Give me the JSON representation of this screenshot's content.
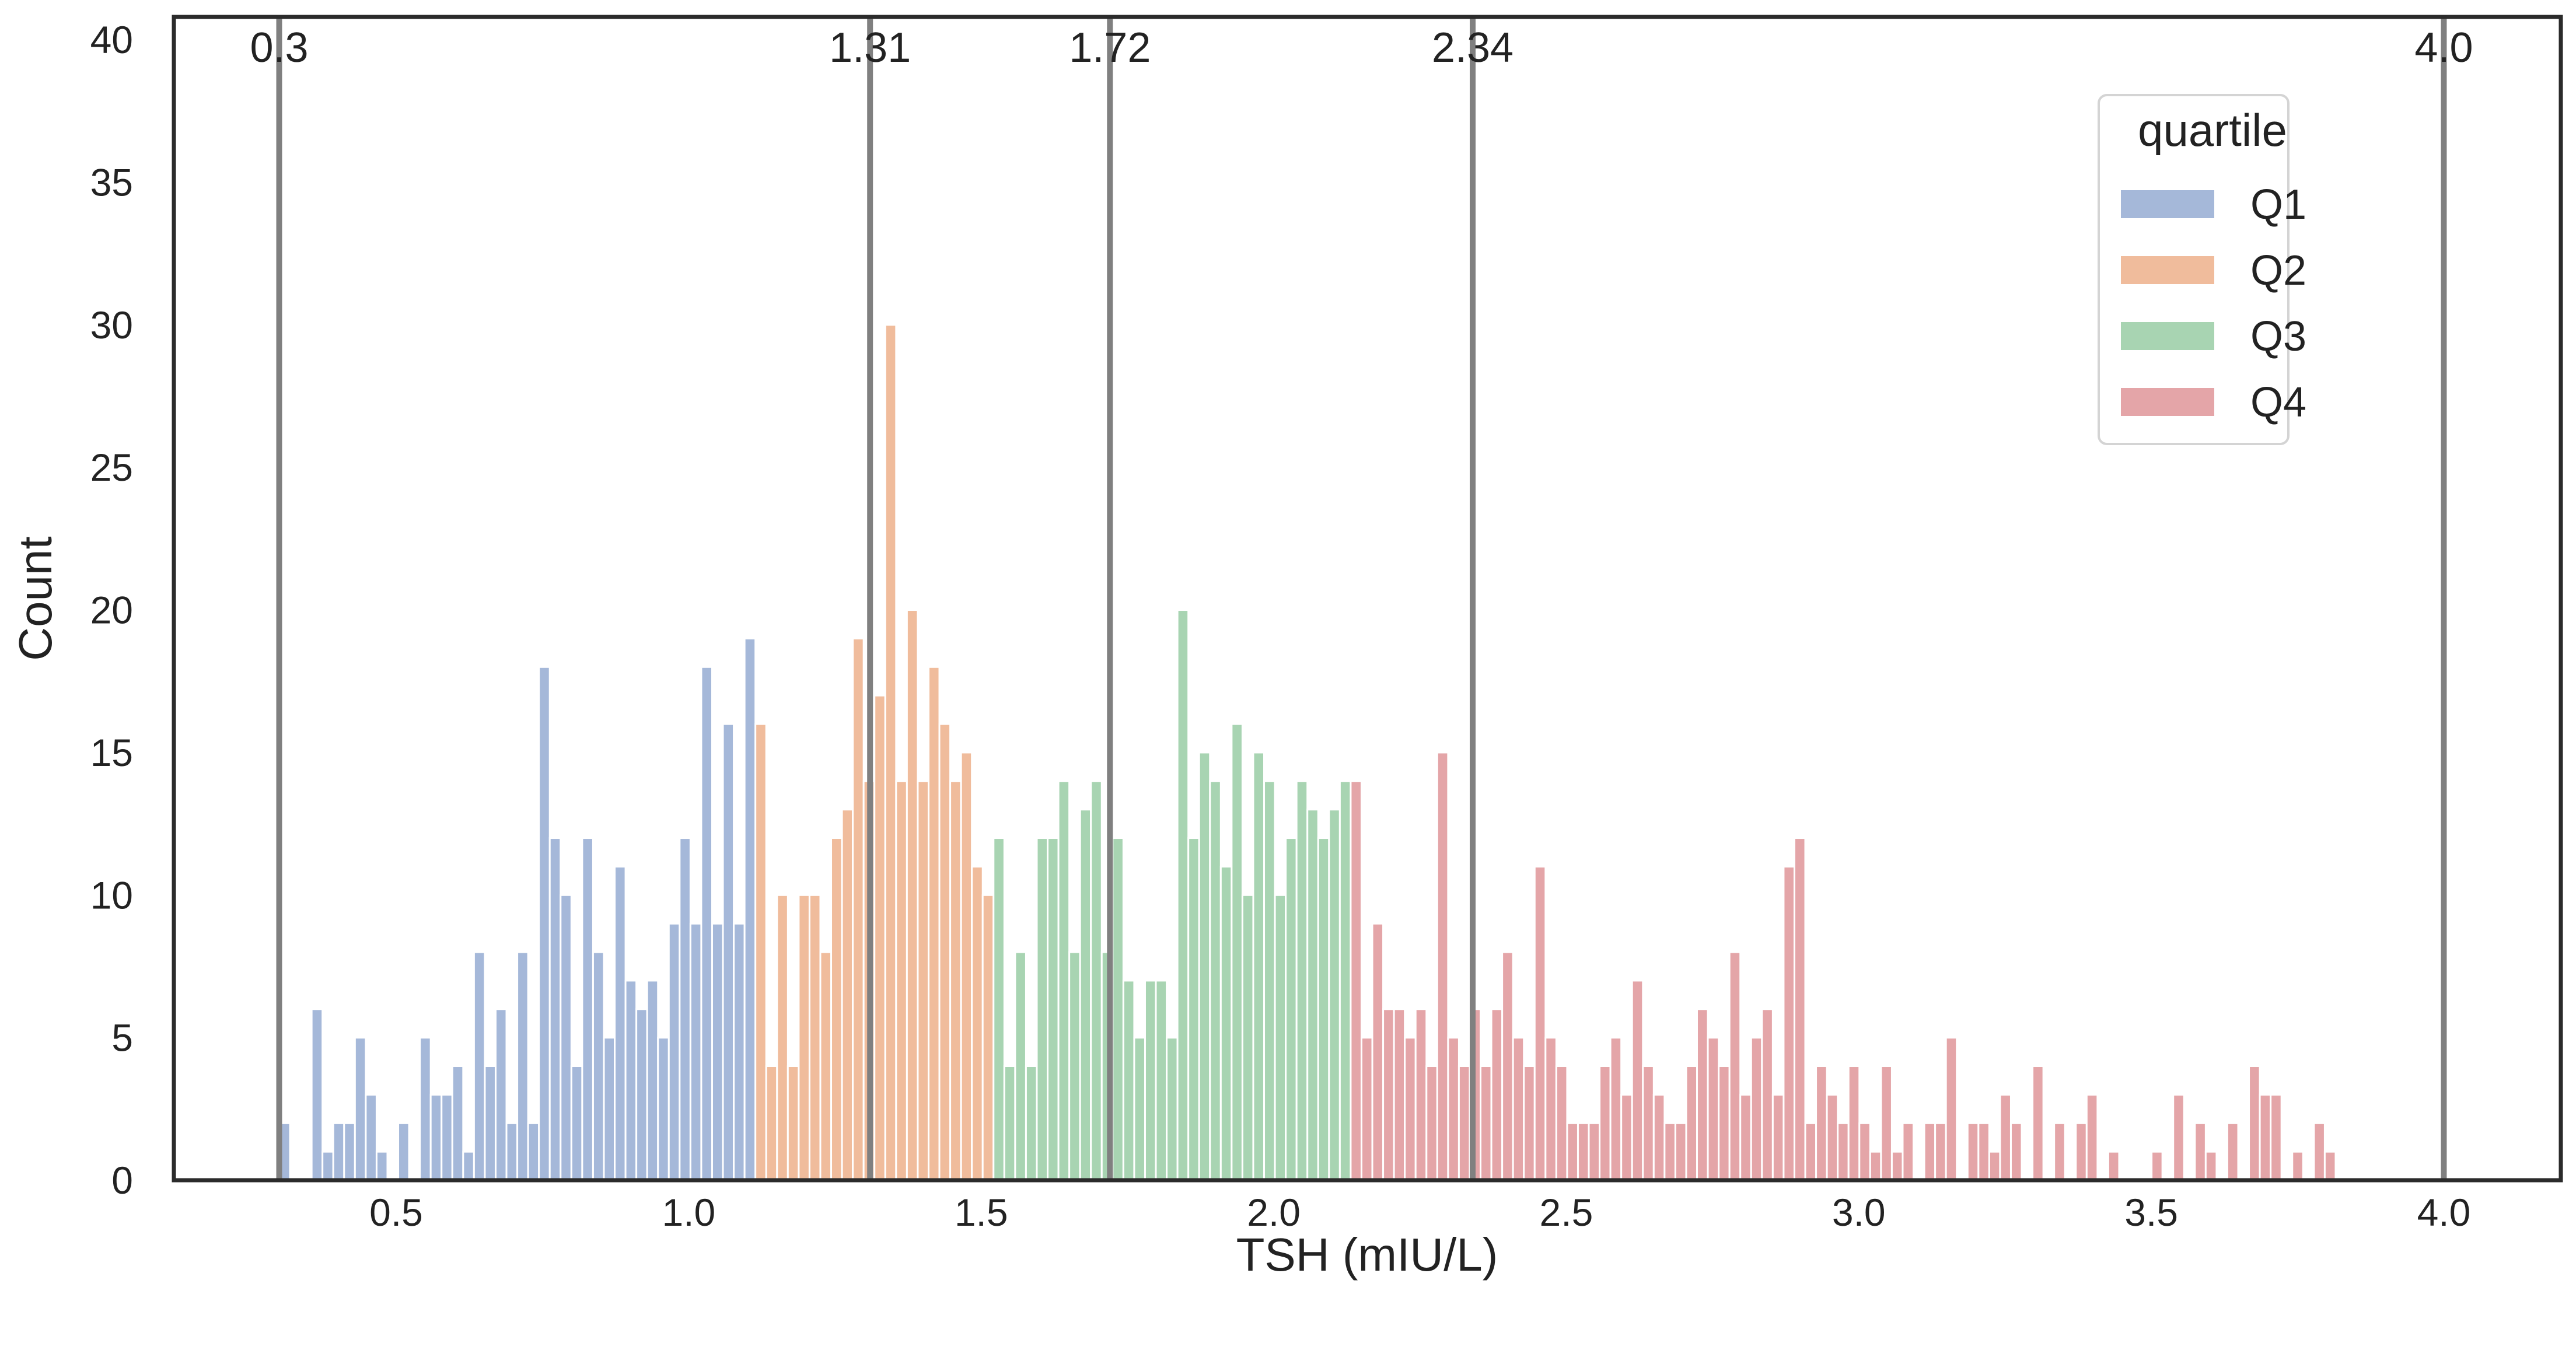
{
  "chart_data": {
    "type": "bar",
    "subtype": "histogram",
    "title": "",
    "xlabel": "TSH (mIU/L)",
    "ylabel": "Count",
    "xlim": [
      0.12,
      4.2
    ],
    "ylim": [
      0,
      40.8
    ],
    "x_ticks": [
      "0.5",
      "1.0",
      "1.5",
      "2.0",
      "2.5",
      "3.0",
      "3.5",
      "4.0"
    ],
    "x_tick_values": [
      0.5,
      1.0,
      1.5,
      2.0,
      2.5,
      3.0,
      3.5,
      4.0
    ],
    "y_ticks": [
      "0",
      "5",
      "10",
      "15",
      "20",
      "25",
      "30",
      "35",
      "40"
    ],
    "y_tick_values": [
      0,
      5,
      10,
      15,
      20,
      25,
      30,
      35,
      40
    ],
    "grid": false,
    "bin_width": 0.0185,
    "bin_start": 0.3,
    "legend": {
      "title": "quartile",
      "placement": "upper right",
      "entries": [
        {
          "label": "Q1",
          "color": "#a5b8d9"
        },
        {
          "label": "Q2",
          "color": "#f0bc9c"
        },
        {
          "label": "Q3",
          "color": "#a8d4b2"
        },
        {
          "label": "Q4",
          "color": "#e4a5a8"
        }
      ]
    },
    "vertical_lines": [
      {
        "x": 0.3,
        "label": "0.3"
      },
      {
        "x": 1.31,
        "label": "1.31"
      },
      {
        "x": 1.72,
        "label": "1.72"
      },
      {
        "x": 2.34,
        "label": "2.34"
      },
      {
        "x": 4.0,
        "label": "4.0"
      }
    ],
    "line_color": "#808080",
    "series": [
      {
        "name": "Q1",
        "color": "#a5b8d9",
        "values": [
          2,
          0,
          0,
          6,
          1,
          2,
          2,
          5,
          3,
          1,
          0,
          2,
          0,
          5,
          3,
          3,
          4,
          1,
          8,
          4,
          6,
          2,
          8,
          2,
          18,
          12,
          10,
          4,
          12,
          8,
          5,
          11,
          7,
          6,
          7,
          5,
          9,
          12,
          9,
          18,
          9,
          16,
          9,
          19
        ]
      },
      {
        "name": "Q2",
        "color": "#f0bc9c",
        "values": [
          16,
          4,
          10,
          4,
          10,
          10,
          8,
          12,
          13,
          19,
          14,
          17,
          30,
          14,
          20,
          14,
          18,
          16,
          14,
          15,
          11,
          10
        ]
      },
      {
        "name": "Q3",
        "color": "#a8d4b2",
        "values": [
          12,
          4,
          8,
          4,
          12,
          12,
          14,
          8,
          13,
          14,
          8,
          12,
          7,
          5,
          7,
          7,
          5,
          20,
          12,
          15,
          14,
          11,
          16,
          10,
          15,
          14,
          10,
          12,
          14,
          13,
          12,
          13,
          14
        ]
      },
      {
        "name": "Q4",
        "color": "#e4a5a8",
        "values": [
          14,
          5,
          9,
          6,
          6,
          5,
          6,
          4,
          15,
          5,
          4,
          6,
          4,
          6,
          8,
          5,
          4,
          11,
          5,
          4,
          2,
          2,
          2,
          4,
          5,
          3,
          7,
          4,
          3,
          2,
          2,
          4,
          6,
          5,
          4,
          8,
          3,
          5,
          6,
          3,
          11,
          12,
          2,
          4,
          3,
          2,
          4,
          2,
          1,
          4,
          1,
          2,
          0,
          2,
          2,
          5,
          0,
          2,
          2,
          1,
          3,
          2,
          0,
          4,
          0,
          2,
          0,
          2,
          3,
          0,
          1,
          0,
          0,
          0,
          1,
          0,
          3,
          0,
          2,
          1,
          0,
          2,
          0,
          4,
          3,
          3,
          0,
          1,
          0,
          2,
          1
        ]
      }
    ]
  }
}
